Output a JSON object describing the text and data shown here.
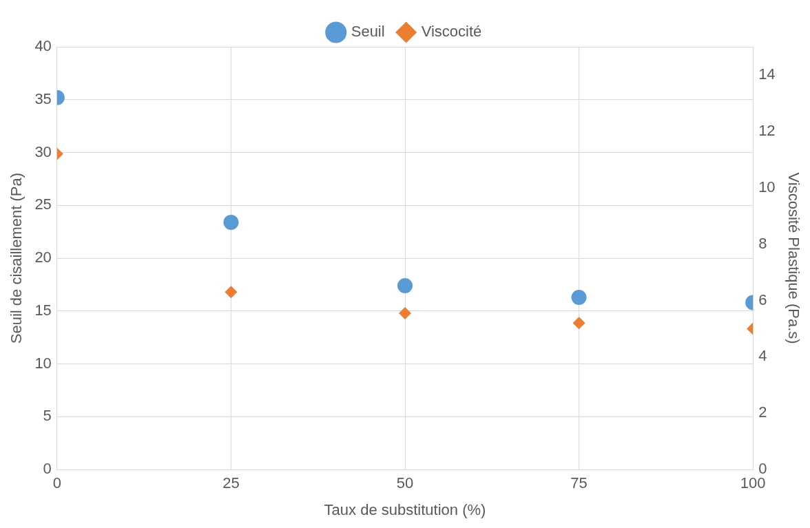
{
  "chart_data": {
    "type": "scatter",
    "xlabel": "Taux de substitution (%)",
    "ylabel": "Seuil de cisaillement (Pa)",
    "y2label": "Viscosité Plastique (Pa.s)",
    "x": [
      0,
      25,
      50,
      75,
      100
    ],
    "series": [
      {
        "name": "Seuil",
        "color": "#5b9bd5",
        "marker": "circle",
        "values": [
          35.2,
          23.4,
          17.4,
          16.3,
          15.8
        ]
      },
      {
        "name": "Viscocité",
        "color": "#ed7d31",
        "marker": "diamond",
        "axis": "y2",
        "values": [
          11.2,
          6.3,
          5.55,
          5.2,
          5.0
        ]
      }
    ],
    "xlim": [
      0,
      100
    ],
    "xticks": [
      0,
      25,
      50,
      75,
      100
    ],
    "ylim": [
      0,
      40
    ],
    "yticks": [
      0,
      5,
      10,
      15,
      20,
      25,
      30,
      35,
      40
    ],
    "y2lim": [
      0,
      15
    ],
    "y2ticks": [
      0,
      2,
      4,
      6,
      8,
      10,
      12,
      14
    ],
    "grid": true,
    "legend": "top"
  }
}
